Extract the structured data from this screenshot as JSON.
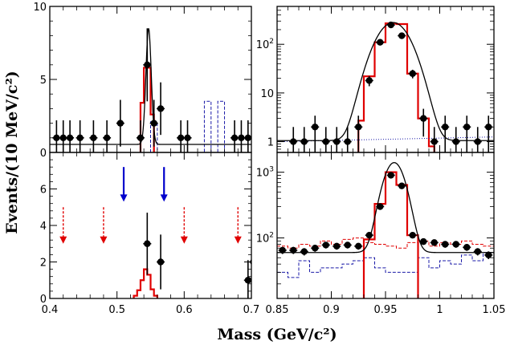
{
  "figure": {
    "ylabel": "Events/(10 MeV/c²)",
    "xlabel": "Mass (GeV/c²)"
  },
  "colors": {
    "data": "#000000",
    "fit": "#000000",
    "mc": "#e00000",
    "sideband": "#1a1aa8",
    "arrow_blue": "#0000cc",
    "arrow_red": "#e00000"
  },
  "chart_data": [
    {
      "panel": "top-left",
      "type": "scatter",
      "yscale": "linear",
      "xlim": [
        0.4,
        0.7
      ],
      "ylim": [
        0,
        10
      ],
      "yticks": [
        0,
        5,
        10
      ],
      "yticklabels": [
        "0",
        "5",
        "10"
      ],
      "xticklabels": [],
      "series": [
        {
          "name": "data",
          "x": [
            0.41,
            0.42,
            0.43,
            0.445,
            0.465,
            0.485,
            0.505,
            0.535,
            0.545,
            0.555,
            0.565,
            0.595,
            0.605,
            0.675,
            0.685,
            0.695
          ],
          "y": [
            1,
            1,
            1,
            1,
            1,
            1,
            2,
            1,
            6,
            2,
            3,
            1,
            1,
            1,
            1,
            1
          ],
          "err": [
            1.2,
            1.2,
            1.2,
            1.2,
            1.2,
            1.2,
            1.6,
            1.2,
            2.5,
            1.6,
            1.8,
            1.2,
            1.2,
            1.2,
            1.2,
            1.2
          ]
        },
        {
          "name": "fit",
          "curve": "gaussian-on-flat",
          "peak": 8.5,
          "mean": 0.547,
          "sigma": 0.004,
          "background": 0.55
        },
        {
          "name": "signal MC",
          "style": "histogram",
          "edges": [
            0.535,
            0.54,
            0.55,
            0.555
          ],
          "values": [
            3.4,
            5.8,
            2.6
          ]
        },
        {
          "name": "sideband",
          "style": "dashed-histogram",
          "edges": [
            0.55,
            0.56,
            0.63,
            0.64,
            0.65,
            0.66,
            0.67
          ],
          "values": [
            2.1,
            0,
            3.5,
            0,
            3.5,
            0
          ]
        }
      ]
    },
    {
      "panel": "bottom-left",
      "type": "scatter",
      "yscale": "linear",
      "xlim": [
        0.4,
        0.7
      ],
      "ylim": [
        0,
        8
      ],
      "yticks": [
        0,
        2,
        4,
        6
      ],
      "yticklabels": [
        "0",
        "2",
        "4",
        "6"
      ],
      "xticks": [
        0.4,
        0.5,
        0.6,
        0.7
      ],
      "xticklabels": [
        "0.4",
        "0.5",
        "0.6",
        "0.7"
      ],
      "series": [
        {
          "name": "data",
          "x": [
            0.545,
            0.565,
            0.695,
            0.703
          ],
          "y": [
            3,
            2,
            1,
            2
          ],
          "err": [
            1.7,
            1.5,
            1.1,
            1.5
          ]
        },
        {
          "name": "signal MC",
          "style": "histogram",
          "edges": [
            0.525,
            0.53,
            0.535,
            0.54,
            0.545,
            0.55,
            0.555,
            0.56
          ],
          "values": [
            0.15,
            0.45,
            1.0,
            1.6,
            1.3,
            0.5,
            0.15
          ]
        },
        {
          "name": "signal window",
          "style": "arrows",
          "color": "blue",
          "x": [
            0.51,
            0.57
          ],
          "y_from": 7.2,
          "y_to": 5.3
        },
        {
          "name": "sideband windows",
          "style": "dashed-arrows",
          "color": "red",
          "x": [
            0.42,
            0.48,
            0.6,
            0.68
          ],
          "y_from": 5.0,
          "y_to": 3.0
        }
      ]
    },
    {
      "panel": "top-right",
      "type": "scatter",
      "yscale": "log",
      "xlim": [
        0.85,
        1.05
      ],
      "ylim": [
        0.6,
        600
      ],
      "yticks": [
        1,
        10,
        100
      ],
      "yticklabels": [
        "1",
        "10",
        "10²"
      ],
      "xticklabels": [],
      "series": [
        {
          "name": "data",
          "x": [
            0.865,
            0.875,
            0.885,
            0.895,
            0.905,
            0.915,
            0.925,
            0.935,
            0.945,
            0.955,
            0.965,
            0.975,
            0.985,
            0.995,
            1.005,
            1.015,
            1.025,
            1.035,
            1.045
          ],
          "y": [
            1,
            1,
            2,
            1,
            1,
            1,
            2,
            18,
            110,
            250,
            150,
            25,
            3,
            1,
            2,
            1,
            2,
            1,
            2
          ]
        },
        {
          "name": "fit",
          "curve": "gaussian-on-flat",
          "peak": 280,
          "mean": 0.957,
          "sigma": 0.0125,
          "background": 1.05
        },
        {
          "name": "background fit",
          "style": "dotted",
          "y_start": 1.0,
          "y_end": 1.25
        },
        {
          "name": "signal MC",
          "style": "histogram",
          "edges": [
            0.925,
            0.93,
            0.94,
            0.95,
            0.96,
            0.97,
            0.98,
            0.99,
            0.995
          ],
          "values": [
            2.7,
            22,
            110,
            270,
            260,
            25,
            3.0,
            0.8
          ]
        }
      ]
    },
    {
      "panel": "bottom-right",
      "type": "scatter",
      "yscale": "log",
      "xlim": [
        0.85,
        1.05
      ],
      "ylim": [
        12,
        2000
      ],
      "yticks": [
        100,
        1000
      ],
      "yticklabels": [
        "10²",
        "10³"
      ],
      "xticks": [
        0.85,
        0.9,
        0.95,
        1.0,
        1.05
      ],
      "xticklabels": [
        "0.85",
        "0.9",
        "0.95",
        "1",
        "1.05"
      ],
      "series": [
        {
          "name": "data",
          "x": [
            0.855,
            0.865,
            0.875,
            0.885,
            0.895,
            0.905,
            0.915,
            0.925,
            0.935,
            0.945,
            0.955,
            0.965,
            0.975,
            0.985,
            0.995,
            1.005,
            1.015,
            1.025,
            1.035,
            1.045
          ],
          "y": [
            65,
            65,
            62,
            70,
            78,
            75,
            78,
            75,
            110,
            300,
            900,
            620,
            110,
            88,
            85,
            80,
            80,
            72,
            62,
            55
          ]
        },
        {
          "name": "fit",
          "curve": "gaussian-on-flat",
          "peak": 1400,
          "mean": 0.958,
          "sigma": 0.0085,
          "background": 60
        },
        {
          "name": "signal MC",
          "style": "histogram",
          "edges": [
            0.93,
            0.94,
            0.95,
            0.96,
            0.97,
            0.98
          ],
          "values": [
            95,
            330,
            1000,
            640,
            110
          ]
        },
        {
          "name": "background MC 1",
          "style": "dashed-histogram",
          "color": "blue",
          "edges": [
            0.85,
            0.86,
            0.87,
            0.88,
            0.89,
            0.9,
            0.91,
            0.92,
            0.93,
            0.94,
            0.95,
            0.96,
            0.97,
            0.98,
            0.99,
            1.0,
            1.01,
            1.02,
            1.03,
            1.04,
            1.05
          ],
          "values": [
            30,
            25,
            45,
            30,
            35,
            35,
            40,
            45,
            50,
            35,
            30,
            30,
            30,
            50,
            35,
            45,
            40,
            55,
            45,
            60
          ]
        },
        {
          "name": "background MC 2",
          "style": "dashed-histogram",
          "color": "red",
          "edges": [
            0.85,
            0.86,
            0.87,
            0.88,
            0.89,
            0.9,
            0.91,
            0.92,
            0.93,
            0.94,
            0.95,
            0.96,
            0.97,
            0.98,
            0.99,
            1.0,
            1.01,
            1.02,
            1.03,
            1.04,
            1.05
          ],
          "values": [
            75,
            70,
            80,
            75,
            90,
            80,
            95,
            100,
            85,
            80,
            75,
            70,
            85,
            90,
            75,
            85,
            80,
            90,
            80,
            75
          ]
        }
      ]
    }
  ]
}
